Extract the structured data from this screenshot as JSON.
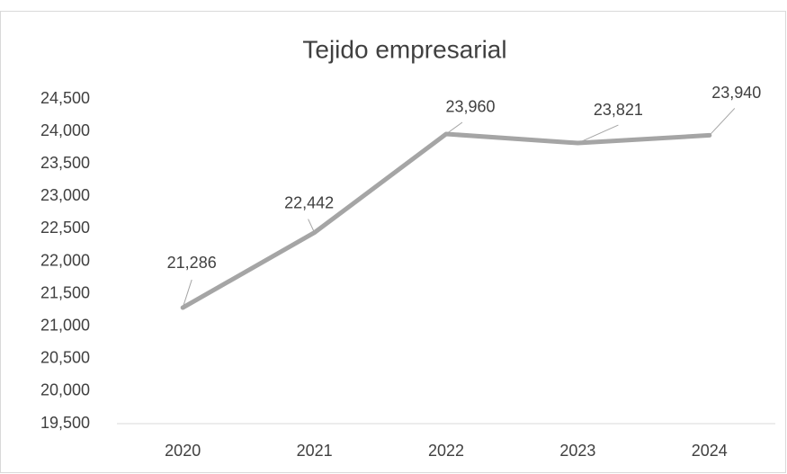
{
  "chart_data": {
    "type": "line",
    "title": "Tejido empresarial",
    "categories": [
      "2020",
      "2021",
      "2022",
      "2023",
      "2024"
    ],
    "values": [
      21286,
      22442,
      23960,
      23821,
      23940
    ],
    "value_labels": [
      "21,286",
      "22,442",
      "23,960",
      "23,821",
      "23,940"
    ],
    "color": "#a5a5a5",
    "ylim": [
      19500,
      24500
    ],
    "yticks": [
      {
        "value": 19500,
        "label": "19,500"
      },
      {
        "value": 20000,
        "label": "20,000"
      },
      {
        "value": 20500,
        "label": "20,500"
      },
      {
        "value": 21000,
        "label": "21,000"
      },
      {
        "value": 21500,
        "label": "21,500"
      },
      {
        "value": 22000,
        "label": "22,000"
      },
      {
        "value": 22500,
        "label": "22,500"
      },
      {
        "value": 23000,
        "label": "23,000"
      },
      {
        "value": 23500,
        "label": "23,500"
      },
      {
        "value": 24000,
        "label": "24,000"
      },
      {
        "value": 24500,
        "label": "24,500"
      }
    ],
    "grid": false
  }
}
